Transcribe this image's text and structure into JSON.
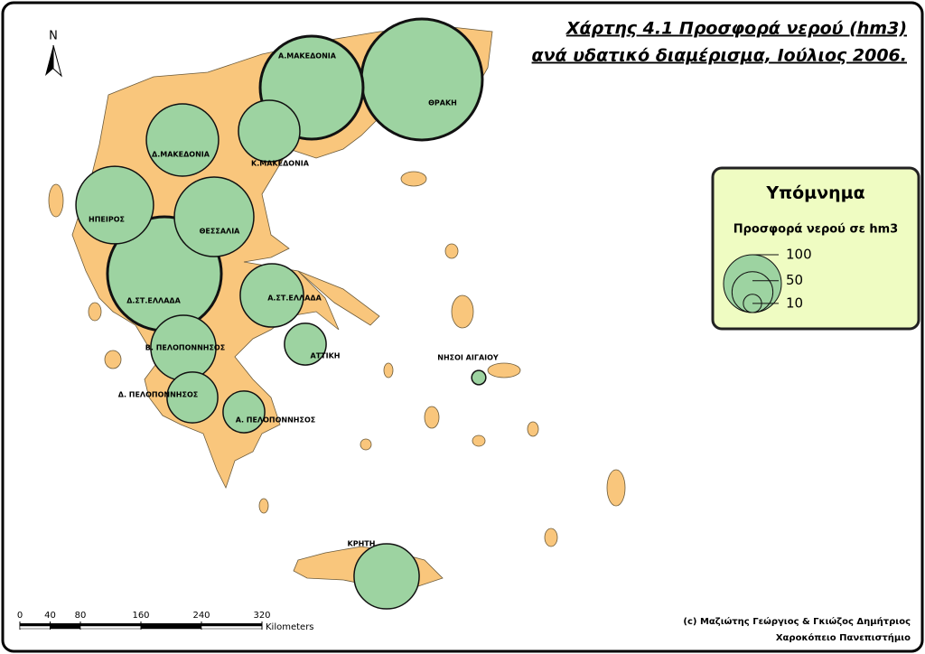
{
  "map": {
    "title": [
      "Χάρτης 4.1 Προσφορά νερού (hm3)",
      "ανά υδατικό διαμέρισμα, Ιούλιος 2006."
    ],
    "north": "N",
    "regions": [
      {
        "name": "ΘΡΑΚΗ",
        "value": 438
      },
      {
        "name": "Α.ΜΑΚΕΔΟΝΙΑ",
        "value": 317
      },
      {
        "name": "Κ.ΜΑΚΕΔΟΝΙΑ",
        "value": 113
      },
      {
        "name": "Δ.ΜΑΚΕΔΟΝΙΑ",
        "value": 156
      },
      {
        "name": "Δ.ΣΤ.ΕΛΛΑΔΑ",
        "value": 388
      },
      {
        "name": "ΗΠΕΙΡΟΣ",
        "value": 180
      },
      {
        "name": "ΘΕΣΣΑΛΙΑ",
        "value": 189
      },
      {
        "name": "Α.ΣΤ.ΕΛΛΑΔΑ",
        "value": 120
      },
      {
        "name": "Β. ΠΕΛΟΠΟΝΝΗΣΟΣ",
        "value": 127
      },
      {
        "name": "Δ. ΠΕΛΟΠΟΝΝΗΣΟΣ",
        "value": 77
      },
      {
        "name": "ΑΤΤΙΚΗ",
        "value": 52
      },
      {
        "name": "Α. ΠΕΛΟΠΟΝΝΗΣΟΣ",
        "value": 52
      },
      {
        "name": "ΝΗΣΟΙ ΑΙΓΑΙΟΥ",
        "value": 6
      },
      {
        "name": "ΚΡΗΤΗ",
        "value": 127
      }
    ],
    "legend": {
      "title": "Υπόμνημα",
      "subtitle": "Προσφορά νερού σε hm3",
      "sizes": [
        100,
        50,
        10
      ]
    },
    "scale": {
      "ticks": [
        0,
        40,
        80,
        160,
        240,
        320
      ],
      "unit": "Kilometers"
    },
    "credits": [
      "(c) Μαζιώτης Γεώργιος & Γκιώζος Δημήτριος",
      "Χαροκόπειο Πανεπιστήμιο"
    ]
  }
}
